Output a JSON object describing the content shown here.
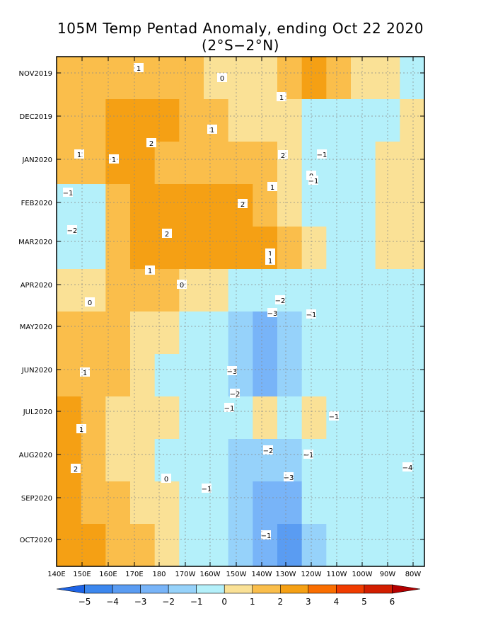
{
  "chart_data": {
    "type": "heatmap",
    "title": "105M Temp Pentad Anomaly, ending Oct 22 2020",
    "subtitle": "(2°S−2°N)",
    "x_ticks": [
      "140E",
      "150E",
      "160E",
      "170E",
      "180",
      "170W",
      "160W",
      "150W",
      "140W",
      "130W",
      "120W",
      "110W",
      "100W",
      "90W",
      "80W"
    ],
    "y_ticks": [
      "NOV2019",
      "DEC2019",
      "JAN2020",
      "FEB2020",
      "MAR2020",
      "APR2020",
      "MAY2020",
      "JUN2020",
      "JUL2020",
      "AUG2020",
      "SEP2020",
      "OCT2020"
    ],
    "colorbar": {
      "levels": [
        -5,
        -4,
        -3,
        -2,
        -1,
        0,
        1,
        2,
        3,
        4,
        5,
        6
      ],
      "labels": [
        "−5",
        "−4",
        "−3",
        "−2",
        "−1",
        "0",
        "1",
        "2",
        "3",
        "4",
        "5",
        "6"
      ],
      "colors": [
        "#1e64e6",
        "#3c87ee",
        "#5a9cf2",
        "#78b4f8",
        "#96d2fa",
        "#b4f0fa",
        "#fae196",
        "#fabe4b",
        "#f5a014",
        "#fa6e00",
        "#f03c00",
        "#d21e00",
        "#b40000"
      ]
    },
    "contour_labels": [
      "1",
      "1",
      "1",
      "1",
      "2",
      "1",
      "2",
      "1",
      "−1",
      "0",
      "−1",
      "−1",
      "1",
      "−2",
      "2",
      "2",
      "1",
      "1",
      "0",
      "0",
      "−2",
      "−3",
      "−1",
      "−3",
      "−2",
      "1",
      "−1",
      "0",
      "−1",
      "1",
      "−2",
      "−1",
      "2",
      "0",
      "−3",
      "−1",
      "−4",
      "−1"
    ],
    "anomaly_grid": {
      "lon_labels": [
        "140E",
        "150E",
        "160E",
        "170E",
        "180",
        "170W",
        "160W",
        "150W",
        "140W",
        "130W",
        "120W",
        "110W",
        "100W",
        "90W",
        "80W"
      ],
      "time_labels": [
        "NOV2019",
        "DEC2019",
        "JAN2020",
        "FEB2020",
        "MAR2020",
        "APR2020",
        "MAY2020",
        "JUN2020",
        "JUL2020",
        "AUG2020",
        "SEP2020",
        "OCT2020"
      ],
      "values": [
        [
          1,
          1,
          1,
          1,
          1,
          1,
          0,
          0,
          0,
          1,
          2,
          1,
          0,
          0,
          -0.5
        ],
        [
          1,
          1,
          2,
          2,
          2,
          1,
          1,
          0,
          0,
          0,
          -1,
          -1,
          -1,
          -0.5,
          0
        ],
        [
          1,
          1,
          2,
          2,
          1,
          1,
          1,
          1,
          1,
          0,
          -1,
          -1,
          -0.5,
          0,
          0.5
        ],
        [
          -1,
          -1,
          1,
          2,
          2,
          2,
          2,
          2,
          1,
          0,
          -0.5,
          -0.5,
          -0.5,
          0,
          0.5
        ],
        [
          -1,
          -1,
          1,
          2,
          2,
          2,
          2,
          2,
          2,
          1,
          0,
          -0.5,
          -0.5,
          0,
          0.5
        ],
        [
          0,
          0,
          1,
          1,
          1,
          0,
          0,
          -1,
          -1,
          -1,
          -1,
          -0.5,
          -0.5,
          -0.5,
          -0.5
        ],
        [
          1,
          1,
          1,
          0,
          0,
          -0.5,
          -1,
          -2,
          -3,
          -2,
          -1,
          -1,
          -0.5,
          -0.5,
          -0.5
        ],
        [
          1,
          1,
          1,
          0,
          -0.5,
          -0.5,
          -1,
          -2,
          -3,
          -2,
          -1,
          -1,
          -0.5,
          -0.5,
          -0.5
        ],
        [
          2,
          1,
          0,
          0,
          0,
          -0.5,
          -0.5,
          -1,
          0,
          -1,
          0,
          -1,
          -0.5,
          -0.5,
          -1
        ],
        [
          2,
          1,
          0,
          0,
          -0.5,
          -0.5,
          -1,
          -2,
          -2,
          -2,
          -1,
          -1,
          -0.5,
          -0.5,
          -1
        ],
        [
          2,
          1,
          1,
          0,
          0,
          -0.5,
          -1,
          -2,
          -3,
          -3,
          -1,
          -0.5,
          -0.5,
          -0.5,
          -0.5
        ],
        [
          2,
          2,
          1,
          1,
          0,
          -0.5,
          -1,
          -2,
          -3,
          -4,
          -2,
          -0.5,
          -0.5,
          -0.5,
          -0.5
        ]
      ]
    }
  }
}
